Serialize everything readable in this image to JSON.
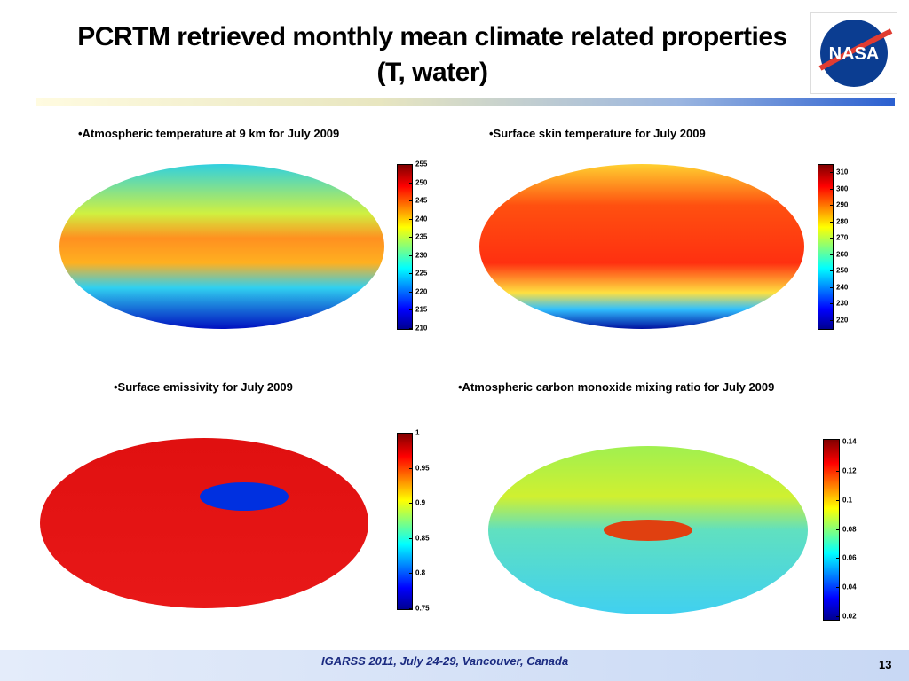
{
  "title": "PCRTM retrieved monthly mean climate related properties (T, water)",
  "logo": "NASA",
  "panels": [
    {
      "caption": "•Atmospheric temperature at 9 km for July 2009",
      "colorbar": {
        "lim": [
          210,
          255
        ],
        "ticks": [
          210,
          215,
          220,
          225,
          230,
          235,
          240,
          245,
          250,
          255
        ]
      }
    },
    {
      "caption": "•Surface skin temperature for July 2009",
      "colorbar": {
        "lim": [
          215,
          315
        ],
        "ticks": [
          220,
          230,
          240,
          250,
          260,
          270,
          280,
          290,
          300,
          310
        ]
      }
    },
    {
      "caption": "•Surface emissivity for July 2009",
      "colorbar": {
        "lim": [
          0.75,
          1
        ],
        "ticks": [
          0.75,
          0.8,
          0.85,
          0.9,
          0.95,
          1
        ]
      }
    },
    {
      "caption": "•Atmospheric carbon monoxide mixing ratio for July 2009",
      "colorbar": {
        "lim": [
          0.018,
          0.142
        ],
        "ticks": [
          0.02,
          0.04,
          0.06,
          0.08,
          0.1,
          0.12,
          0.14
        ]
      }
    }
  ],
  "footer": "IGARSS 2011, July 24-29, Vancouver, Canada",
  "page": 13
}
